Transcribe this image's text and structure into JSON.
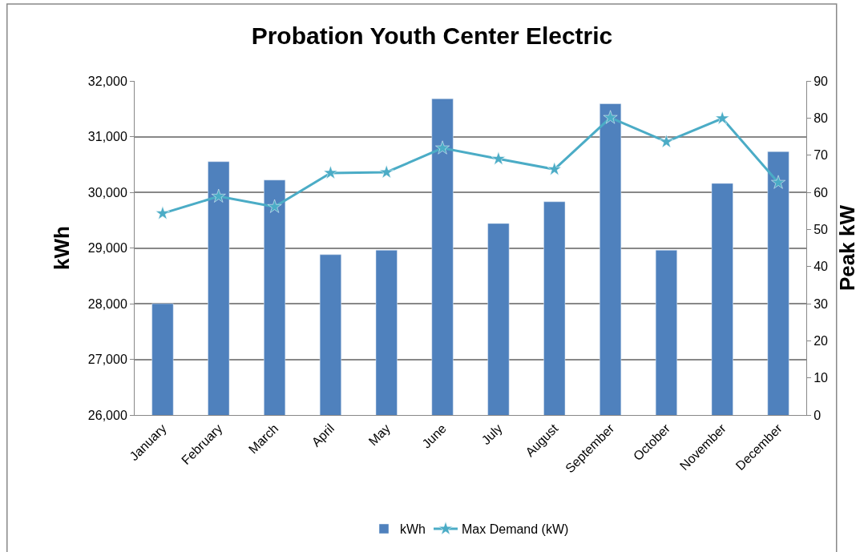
{
  "chart_data": {
    "type": "bar",
    "title": "Probation Youth Center Electric",
    "ylabel": "kWh",
    "y2label": "Peak kW",
    "categories": [
      "January",
      "February",
      "March",
      "April",
      "May",
      "June",
      "July",
      "August",
      "September",
      "October",
      "November",
      "December"
    ],
    "series": [
      {
        "name": "kWh",
        "color": "#4f81bd",
        "values": [
          28000,
          30550,
          30220,
          28880,
          28960,
          31680,
          29440,
          29830,
          31590,
          28960,
          30160,
          30730
        ]
      },
      {
        "name": "Max Demand (kW)",
        "type": "line",
        "axis": "y2",
        "color": "#4bacc6",
        "marker": "star",
        "values": [
          54.3,
          58.9,
          56.1,
          65.2,
          65.4,
          71.9,
          69.0,
          66.2,
          80.1,
          73.6,
          79.9,
          62.6
        ]
      }
    ],
    "ylim": [
      26000,
      32000
    ],
    "yticks": [
      {
        "value": 26000,
        "label": "26,000"
      },
      {
        "value": 27000,
        "label": "27,000"
      },
      {
        "value": 28000,
        "label": "28,000"
      },
      {
        "value": 29000,
        "label": "29,000"
      },
      {
        "value": 30000,
        "label": "30,000"
      },
      {
        "value": 31000,
        "label": "31,000"
      },
      {
        "value": 32000,
        "label": "32,000"
      }
    ],
    "y2lim": [
      0,
      90
    ],
    "y2ticks": [
      0,
      10,
      20,
      30,
      40,
      50,
      60,
      70,
      80,
      90
    ],
    "grid": "y",
    "legend": "bottom"
  }
}
